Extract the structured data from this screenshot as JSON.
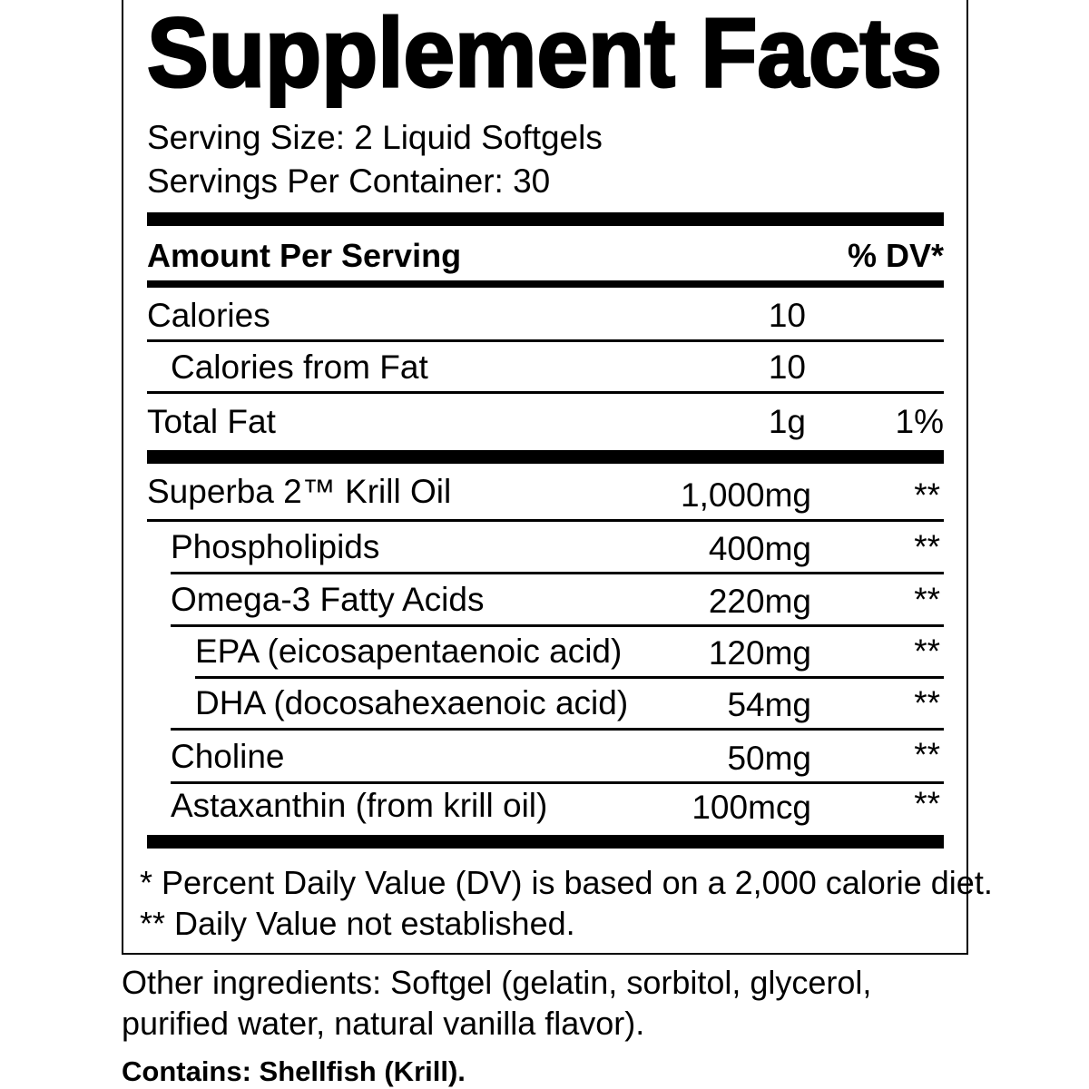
{
  "title": "Supplement Facts",
  "serving_size": "Serving Size: 2 Liquid Softgels",
  "servings_per_container": "Servings Per Container: 30",
  "header": {
    "amount_per_serving": "Amount Per Serving",
    "dv": "% DV*"
  },
  "rows": [
    {
      "name": "Calories",
      "amount": "10",
      "dv": ""
    },
    {
      "name": "Calories from Fat",
      "amount": "10",
      "dv": ""
    },
    {
      "name": "Total Fat",
      "amount": "1g",
      "dv": "1%"
    },
    {
      "name": "Superba 2™ Krill Oil",
      "amount": "1,000mg",
      "dv": "**"
    },
    {
      "name": "Phospholipids",
      "amount": "400mg",
      "dv": "**"
    },
    {
      "name": "Omega-3 Fatty Acids",
      "amount": "220mg",
      "dv": "**"
    },
    {
      "name": "EPA (eicosapentaenoic acid)",
      "amount": "120mg",
      "dv": "**"
    },
    {
      "name": "DHA (docosahexaenoic acid)",
      "amount": "54mg",
      "dv": "**"
    },
    {
      "name": "Choline",
      "amount": "50mg",
      "dv": "**"
    },
    {
      "name": "Astaxanthin (from krill oil)",
      "amount": "100mcg",
      "dv": "**"
    }
  ],
  "footnotes": [
    "* Percent Daily Value (DV) is based on a 2,000 calorie diet.",
    "** Daily Value not established."
  ],
  "other_ingredients": [
    "Other ingredients: Softgel (gelatin, sorbitol, glycerol,",
    "purified water, natural vanilla flavor)."
  ],
  "contains": "Contains: Shellfish (Krill)."
}
